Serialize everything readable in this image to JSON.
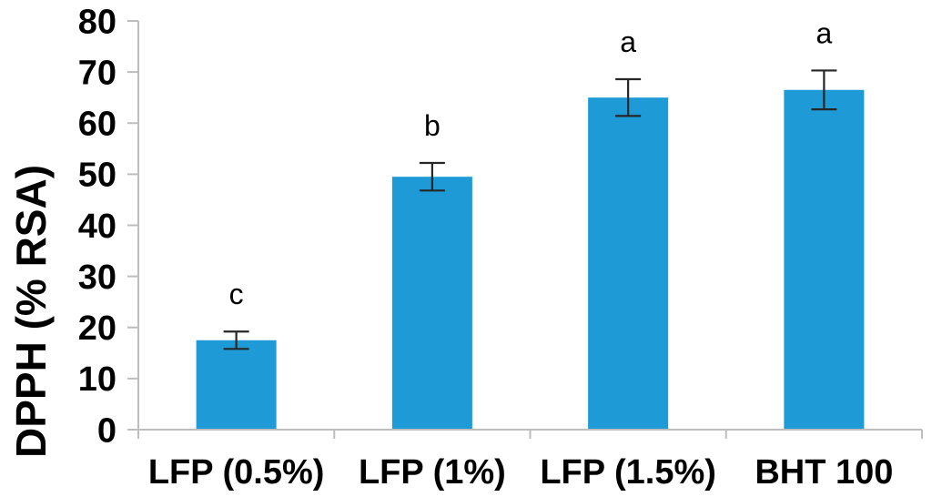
{
  "chart_data": {
    "type": "bar",
    "title": "",
    "xlabel": "",
    "ylabel": "DPPH (% RSA)",
    "categories": [
      "LFP (0.5%)",
      "LFP (1%)",
      "LFP (1.5%)",
      "BHT 100"
    ],
    "values": [
      17.5,
      49.5,
      65,
      66.5
    ],
    "error_bars": [
      1.7,
      2.7,
      3.6,
      3.8
    ],
    "significance_letters": [
      "c",
      "b",
      "a",
      "a"
    ],
    "ylim": [
      0,
      80
    ],
    "yticks": [
      0,
      10,
      20,
      30,
      40,
      50,
      60,
      70,
      80
    ],
    "grid": false,
    "legend": "none",
    "colors": {
      "bar_fill": "#1E9BD7",
      "axis_line": "#BDBDBD",
      "error_bar": "#262626",
      "text": "#000000"
    }
  }
}
